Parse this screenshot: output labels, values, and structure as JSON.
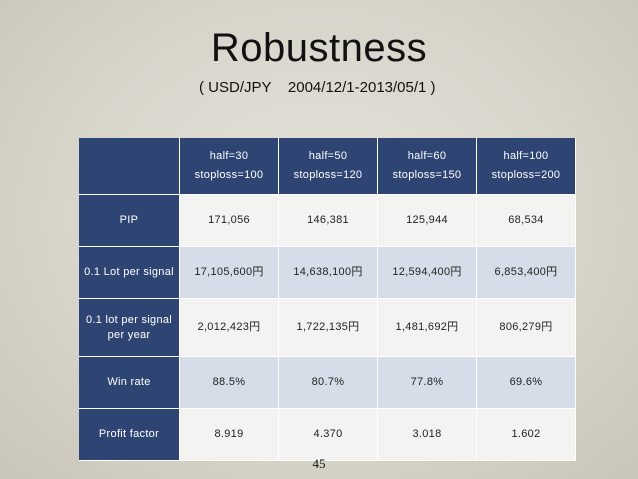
{
  "slide": {
    "title": "Robustness",
    "subtitle": "( USD/JPY    2004/12/1-2013/05/1 )",
    "page_number": "45"
  },
  "table": {
    "columns": [
      {
        "line1": "half=30",
        "line2": "stoploss=100"
      },
      {
        "line1": "half=50",
        "line2": "stoploss=120"
      },
      {
        "line1": "half=60",
        "line2": "stoploss=150"
      },
      {
        "line1": "half=100",
        "line2": "stoploss=200"
      }
    ],
    "rows": [
      {
        "label": "PIP",
        "values": [
          "171,056",
          "146,381",
          "125,944",
          "68,534"
        ]
      },
      {
        "label": "0.1 Lot per signal",
        "values": [
          "17,105,600円",
          "14,638,100円",
          "12,594,400円",
          "6,853,400円"
        ]
      },
      {
        "label": "0.1 lot per signal per year",
        "values": [
          "2,012,423円",
          "1,722,135円",
          "1,481,692円",
          "806,279円"
        ]
      },
      {
        "label": "Win rate",
        "values": [
          "88.5%",
          "80.7%",
          "77.8%",
          "69.6%"
        ]
      },
      {
        "label": "Profit factor",
        "values": [
          "8.919",
          "4.370",
          "3.018",
          "1.602"
        ]
      }
    ]
  },
  "colors": {
    "header_blue": "#2e4574",
    "row_light": "#f3f3f1",
    "row_blue_tint": "#d7dde8"
  }
}
